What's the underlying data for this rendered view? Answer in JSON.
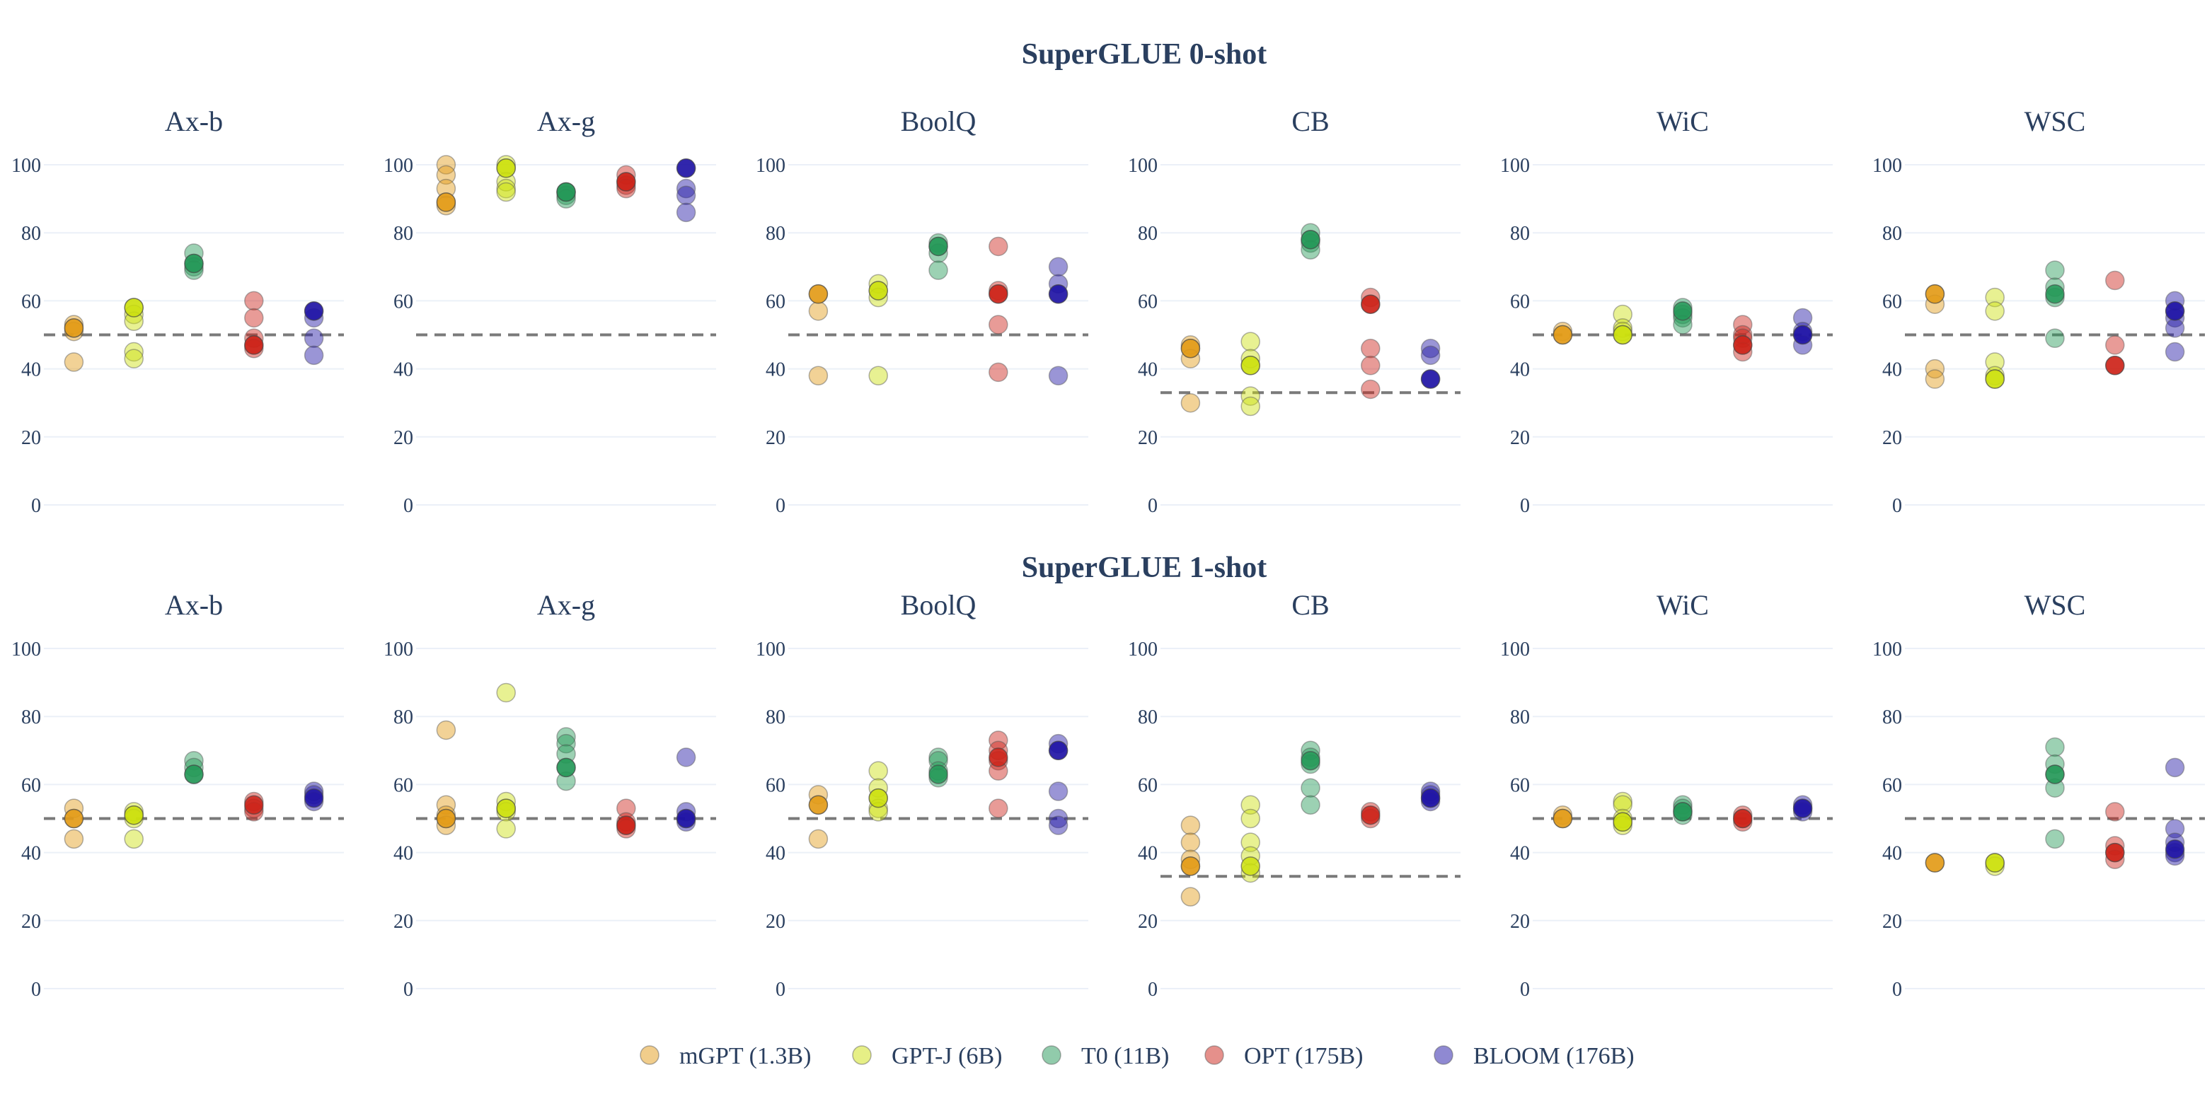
{
  "chart_data": {
    "type": "scatter",
    "legend": {
      "placement": "bottom-center",
      "entries": [
        {
          "name": "mGPT (1.3B)",
          "color": "#e39b17"
        },
        {
          "name": "GPT-J (6B)",
          "color": "#cde00e"
        },
        {
          "name": "T0 (11B)",
          "color": "#239857"
        },
        {
          "name": "OPT (175B)",
          "color": "#cc2218"
        },
        {
          "name": "BLOOM (176B)",
          "color": "#1f13a5"
        }
      ]
    },
    "models": [
      "mGPT (1.3B)",
      "GPT-J (6B)",
      "T0 (11B)",
      "OPT (175B)",
      "BLOOM (176B)"
    ],
    "ylim": [
      0,
      100
    ],
    "yticks": [
      "0",
      "20",
      "40",
      "60",
      "80",
      "100"
    ],
    "grid": true,
    "rows": [
      {
        "title": "SuperGLUE 0-shot",
        "panels": [
          {
            "title": "Ax-b",
            "baseline": 50,
            "highlight": [
              52,
              58,
              71,
              47,
              57
            ],
            "series": [
              [
                53,
                51,
                42,
                52
              ],
              [
                58,
                56,
                54,
                45,
                43
              ],
              [
                74,
                71,
                70,
                69
              ],
              [
                60,
                55,
                49,
                47,
                46
              ],
              [
                57,
                55,
                49,
                44
              ]
            ]
          },
          {
            "title": "Ax-g",
            "baseline": 50,
            "highlight": [
              89,
              99,
              92,
              95,
              99
            ],
            "series": [
              [
                100,
                97,
                93,
                89,
                88
              ],
              [
                100,
                99,
                95,
                93,
                92
              ],
              [
                92,
                92,
                91,
                90
              ],
              [
                97,
                95,
                94,
                93
              ],
              [
                99,
                93,
                91,
                86
              ]
            ]
          },
          {
            "title": "BoolQ",
            "baseline": 50,
            "highlight": [
              62,
              63,
              76,
              62,
              62
            ],
            "series": [
              [
                62,
                57,
                38
              ],
              [
                65,
                63,
                61,
                38
              ],
              [
                77,
                76,
                74,
                69
              ],
              [
                76,
                63,
                62,
                53,
                39
              ],
              [
                70,
                65,
                62,
                38
              ]
            ]
          },
          {
            "title": "CB",
            "baseline": 33,
            "highlight": [
              46,
              41,
              78,
              59,
              37
            ],
            "series": [
              [
                47,
                46,
                43,
                30
              ],
              [
                48,
                43,
                41,
                32,
                29
              ],
              [
                80,
                78,
                77,
                75
              ],
              [
                61,
                59,
                46,
                41,
                34
              ],
              [
                46,
                44,
                37
              ]
            ]
          },
          {
            "title": "WiC",
            "baseline": 50,
            "highlight": [
              50,
              50,
              57,
              47,
              50
            ],
            "series": [
              [
                51,
                50
              ],
              [
                56,
                52,
                51,
                50
              ],
              [
                58,
                56,
                55,
                53
              ],
              [
                53,
                50,
                49,
                47,
                45
              ],
              [
                55,
                51,
                50,
                47
              ]
            ]
          },
          {
            "title": "WSC",
            "baseline": 50,
            "highlight": [
              62,
              37,
              62,
              41,
              57
            ],
            "series": [
              [
                62,
                59,
                40,
                37
              ],
              [
                61,
                57,
                42,
                38,
                37
              ],
              [
                69,
                64,
                61,
                49
              ],
              [
                66,
                47,
                41
              ],
              [
                60,
                57,
                55,
                52,
                45
              ]
            ]
          }
        ]
      },
      {
        "title": "SuperGLUE 1-shot",
        "panels": [
          {
            "title": "Ax-b",
            "baseline": 50,
            "highlight": [
              50,
              51,
              63,
              54,
              56
            ],
            "series": [
              [
                53,
                50,
                44
              ],
              [
                52,
                51,
                50,
                44
              ],
              [
                67,
                65,
                63
              ],
              [
                55,
                53,
                52
              ],
              [
                58,
                57,
                55
              ]
            ]
          },
          {
            "title": "Ax-g",
            "baseline": 50,
            "highlight": [
              50,
              53,
              65,
              48,
              50
            ],
            "series": [
              [
                76,
                54,
                51,
                50,
                48
              ],
              [
                87,
                55,
                53,
                52,
                47
              ],
              [
                74,
                72,
                69,
                65,
                61
              ],
              [
                53,
                49,
                48,
                47
              ],
              [
                68,
                52,
                50,
                49
              ]
            ]
          },
          {
            "title": "BoolQ",
            "baseline": 50,
            "highlight": [
              54,
              56,
              63,
              68,
              70
            ],
            "series": [
              [
                57,
                54,
                44
              ],
              [
                64,
                59,
                56,
                53,
                52
              ],
              [
                68,
                67,
                64,
                62
              ],
              [
                73,
                70,
                67,
                64,
                53
              ],
              [
                72,
                70,
                58,
                50,
                48
              ]
            ]
          },
          {
            "title": "CB",
            "baseline": 33,
            "highlight": [
              36,
              36,
              67,
              51,
              56
            ],
            "series": [
              [
                48,
                43,
                38,
                36,
                27
              ],
              [
                54,
                50,
                43,
                39,
                34
              ],
              [
                70,
                68,
                66,
                59,
                54
              ],
              [
                52,
                50
              ],
              [
                58,
                57,
                56,
                55
              ]
            ]
          },
          {
            "title": "WiC",
            "baseline": 50,
            "highlight": [
              50,
              49,
              52,
              50,
              53
            ],
            "series": [
              [
                51,
                50
              ],
              [
                55,
                54,
                50,
                49,
                48
              ],
              [
                54,
                53,
                52,
                51
              ],
              [
                51,
                50,
                49
              ],
              [
                54,
                53,
                52
              ]
            ]
          },
          {
            "title": "WSC",
            "baseline": 50,
            "highlight": [
              37,
              37,
              63,
              40,
              41
            ],
            "series": [
              [
                37
              ],
              [
                37,
                36
              ],
              [
                71,
                66,
                63,
                59,
                44
              ],
              [
                52,
                42,
                40,
                38
              ],
              [
                65,
                47,
                43,
                40,
                39
              ]
            ]
          }
        ]
      }
    ]
  }
}
